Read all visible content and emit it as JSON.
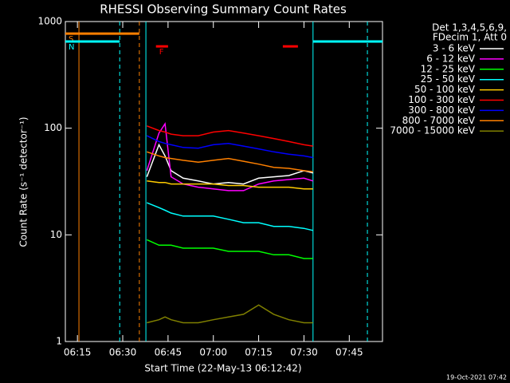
{
  "chart_data": {
    "type": "line",
    "title": "RHESSI Observing Summary Count Rates",
    "xlabel": "Start Time (22-May-13 06:12:42)",
    "ylabel": "Count Rate (s⁻¹ detector⁻¹)",
    "log_y": true,
    "xlim": [
      "06:11",
      "07:56"
    ],
    "xticks": [
      "06:15",
      "06:30",
      "06:45",
      "07:00",
      "07:15",
      "07:30",
      "07:45"
    ],
    "ylim": [
      1,
      1000
    ],
    "yticks": [
      1,
      10,
      100,
      1000
    ],
    "legend_title": [
      "Det 1,3,4,5,6,9,",
      "FDecim 1, Att 0"
    ],
    "footer": "19-Oct-2021 07:42",
    "x": [
      "06:38",
      "06:42",
      "06:44",
      "06:46",
      "06:50",
      "06:55",
      "07:00",
      "07:05",
      "07:10",
      "07:15",
      "07:20",
      "07:25",
      "07:30",
      "07:33"
    ],
    "series": [
      {
        "name": "3 - 6 keV",
        "color": "#ffffff",
        "values": [
          35,
          70,
          55,
          40,
          34,
          32,
          30,
          31,
          30,
          34,
          35,
          36,
          40,
          38
        ]
      },
      {
        "name": "6 - 12 keV",
        "color": "#ff00ff",
        "values": [
          40,
          90,
          110,
          35,
          30,
          28,
          27,
          26,
          26,
          30,
          32,
          33,
          34,
          32
        ]
      },
      {
        "name": "12 - 25 keV",
        "color": "#00ff00",
        "values": [
          9,
          8,
          8,
          8,
          7.5,
          7.5,
          7.5,
          7,
          7,
          7,
          6.5,
          6.5,
          6,
          6
        ]
      },
      {
        "name": "25 - 50 keV",
        "color": "#00ffff",
        "values": [
          20,
          18,
          17,
          16,
          15,
          15,
          15,
          14,
          13,
          13,
          12,
          12,
          11.5,
          11
        ]
      },
      {
        "name": "50 - 100 keV",
        "color": "#ffcc00",
        "values": [
          32,
          31,
          31,
          30,
          30,
          30,
          30,
          29,
          29,
          28,
          28,
          28,
          27,
          27
        ]
      },
      {
        "name": "100 - 300 keV",
        "color": "#ff0000",
        "values": [
          105,
          95,
          92,
          88,
          85,
          85,
          92,
          95,
          90,
          85,
          80,
          75,
          70,
          68
        ]
      },
      {
        "name": "300 - 800 keV",
        "color": "#0000ff",
        "values": [
          85,
          75,
          72,
          70,
          66,
          65,
          70,
          72,
          68,
          64,
          60,
          57,
          55,
          53
        ]
      },
      {
        "name": "800 - 7000 keV",
        "color": "#ff8000",
        "values": [
          60,
          55,
          53,
          52,
          50,
          48,
          50,
          52,
          49,
          46,
          43,
          42,
          40,
          39
        ]
      },
      {
        "name": "7000 - 15000 keV",
        "color": "#808000",
        "values": [
          1.5,
          1.6,
          1.7,
          1.6,
          1.5,
          1.5,
          1.6,
          1.7,
          1.8,
          2.2,
          1.8,
          1.6,
          1.5,
          1.5
        ]
      }
    ],
    "markers": [
      {
        "x": "06:15:30",
        "color": "#ff8000",
        "dashed": false
      },
      {
        "x": "06:29",
        "color": "#00ffff",
        "dashed": true
      },
      {
        "x": "06:35:30",
        "color": "#ff8000",
        "dashed": true
      },
      {
        "x": "06:37:40",
        "color": "#00ffff",
        "dashed": false
      },
      {
        "x": "07:33",
        "color": "#00ffff",
        "dashed": false
      },
      {
        "x": "07:51",
        "color": "#00ffff",
        "dashed": true
      }
    ],
    "bars": [
      {
        "label": "S",
        "start": "06:11",
        "end": "06:35:30",
        "level": 770,
        "color": "#ff8000"
      },
      {
        "label": "N",
        "start": "06:11",
        "end": "06:29",
        "level": 650,
        "color": "#00ffff"
      },
      {
        "start": "07:33",
        "end": "07:56",
        "level": 650,
        "color": "#00ffff"
      },
      {
        "label": "F",
        "start": "06:41",
        "end": "06:45",
        "level": 585,
        "color": "#ff0000"
      },
      {
        "start": "07:23",
        "end": "07:28",
        "level": 585,
        "color": "#ff0000"
      }
    ]
  }
}
